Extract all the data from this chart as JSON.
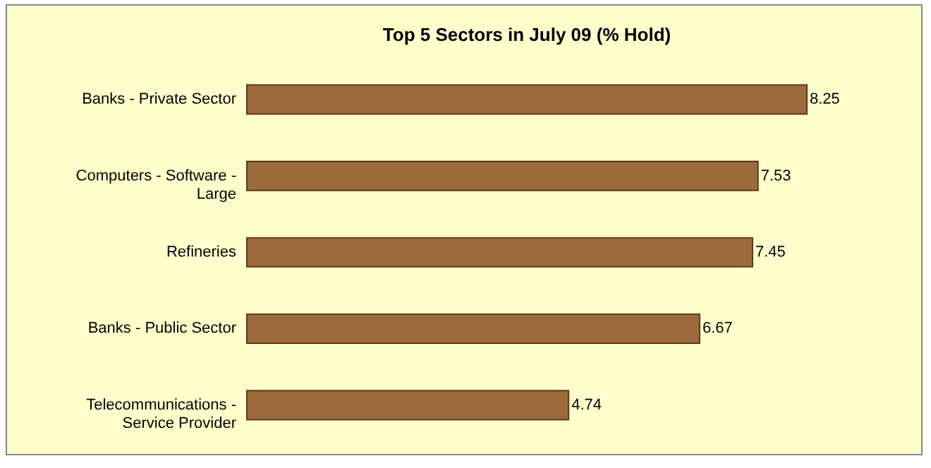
{
  "chart_data": {
    "type": "bar",
    "orientation": "horizontal",
    "data_labels": true,
    "title": "Top 5 Sectors in July 09 (% Hold)",
    "categories": [
      "Banks - Private Sector",
      "Computers - Software - Large",
      "Refineries",
      "Banks - Public Sector",
      "Telecommunications - Service Provider"
    ],
    "values": [
      8.25,
      7.53,
      7.45,
      6.67,
      4.74
    ],
    "color": "#9c6b3c"
  }
}
